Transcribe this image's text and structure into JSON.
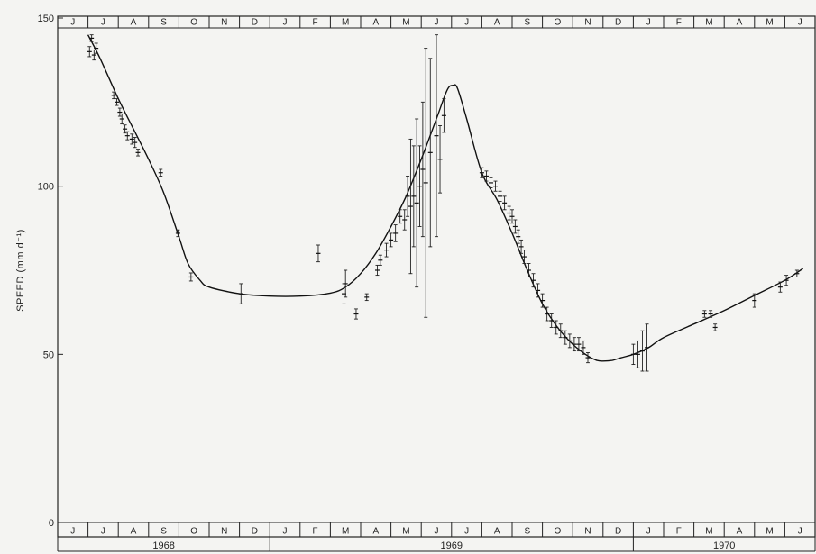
{
  "chart_data": {
    "type": "scatter",
    "title": "",
    "xlabel": "",
    "ylabel": "SPEED (mm d⁻¹)",
    "ylim": [
      0,
      150
    ],
    "yticks": [
      0,
      50,
      100,
      150
    ],
    "ytick_labels": [
      "0",
      "50",
      "100",
      "150"
    ],
    "x_unit": "month index (0 = start of June 1968)",
    "xlim": [
      0,
      25
    ],
    "months": [
      "J",
      "J",
      "A",
      "S",
      "O",
      "N",
      "D",
      "J",
      "F",
      "M",
      "A",
      "M",
      "J",
      "J",
      "A",
      "S",
      "O",
      "N",
      "D",
      "J",
      "F",
      "M",
      "A",
      "M",
      "J"
    ],
    "years": [
      {
        "label": "1968",
        "start": 0,
        "end": 7
      },
      {
        "label": "1969",
        "start": 7,
        "end": 19
      },
      {
        "label": "1970",
        "start": 19,
        "end": 25
      }
    ],
    "grid": false,
    "legend": "none",
    "series": [
      {
        "kind": "curve",
        "x": [
          1.0,
          1.4,
          2.0,
          2.5,
          3.0,
          3.5,
          4.0,
          4.3,
          4.7,
          5.0,
          6.0,
          7.0,
          8.0,
          9.0,
          9.5,
          10.0,
          10.5,
          11.0,
          11.5,
          12.0,
          12.5,
          12.85,
          13.05,
          13.2,
          13.5,
          14.0,
          14.5,
          15.0,
          15.5,
          16.0,
          16.5,
          17.0,
          17.5,
          17.8,
          18.0,
          18.3,
          18.6,
          19.0,
          19.5,
          20.0,
          21.0,
          22.0,
          23.0,
          24.0,
          24.6
        ],
        "y": [
          145,
          138,
          126,
          117,
          108,
          98,
          85,
          77,
          72,
          70,
          68,
          67.3,
          67.3,
          68.2,
          70,
          74,
          80,
          88,
          97,
          108,
          120,
          128.5,
          130,
          129,
          120,
          104,
          96,
          86,
          75,
          65,
          58,
          53,
          49.5,
          48.2,
          48,
          48.2,
          49,
          50,
          52,
          55,
          59,
          63,
          67.5,
          72,
          75.5
        ]
      },
      {
        "kind": "points",
        "x": [
          1.05,
          1.12,
          1.2,
          1.27,
          1.85,
          1.95,
          2.05,
          2.12,
          2.22,
          2.3,
          2.45,
          2.55,
          2.65,
          3.4,
          3.97,
          4.4,
          6.05,
          8.6,
          9.45,
          9.5,
          9.85,
          10.2,
          10.55,
          10.65,
          10.85,
          11.0,
          11.15,
          11.3,
          11.45,
          11.55,
          11.65,
          11.75,
          11.85,
          11.95,
          12.05,
          12.15,
          12.3,
          12.5,
          12.62,
          12.75,
          14.0,
          14.15,
          14.3,
          14.45,
          14.6,
          14.75,
          14.9,
          15.0,
          15.1,
          15.2,
          15.3,
          15.4,
          15.55,
          15.7,
          15.85,
          16.0,
          16.15,
          16.3,
          16.45,
          16.6,
          16.75,
          16.9,
          17.05,
          17.2,
          17.35,
          17.5,
          19.0,
          19.15,
          19.3,
          19.45,
          21.35,
          21.55,
          21.7,
          23.0,
          23.85,
          24.05,
          24.4
        ],
        "y": [
          140,
          144,
          139,
          141,
          127,
          125,
          122,
          120,
          117,
          115,
          114,
          113,
          110,
          104,
          86,
          73,
          68,
          80,
          68,
          71,
          62,
          67,
          75,
          78,
          81,
          84,
          86,
          91,
          90,
          97,
          94,
          97,
          95,
          100,
          105,
          101,
          110,
          115,
          108,
          121,
          104,
          103,
          101,
          100,
          97,
          95,
          92,
          91,
          88,
          85,
          82,
          79,
          75,
          72,
          69,
          66,
          62,
          60,
          58,
          57,
          55,
          54,
          53,
          53,
          52,
          49,
          50,
          50,
          51,
          52,
          62,
          62,
          58,
          66,
          70,
          72,
          74
        ],
        "err": [
          1.5,
          1,
          1.5,
          1.5,
          1,
          1,
          1.2,
          1.5,
          1.2,
          1.2,
          1.5,
          1.5,
          1,
          1,
          1,
          1.2,
          3,
          2.5,
          3,
          4,
          1.5,
          1,
          1.5,
          1.5,
          2,
          2,
          2.5,
          2,
          3,
          6,
          20,
          15,
          25,
          12,
          20,
          40,
          28,
          30,
          10,
          5,
          1.5,
          1.5,
          1.5,
          1.5,
          1.5,
          2,
          2,
          2,
          2,
          2,
          2,
          2,
          2,
          2,
          2,
          2,
          2,
          2,
          2,
          2,
          2,
          2,
          2,
          2,
          2,
          1.5,
          3,
          4,
          6,
          7,
          1,
          1,
          1,
          2,
          1.5,
          1.5,
          1
        ]
      }
    ]
  }
}
